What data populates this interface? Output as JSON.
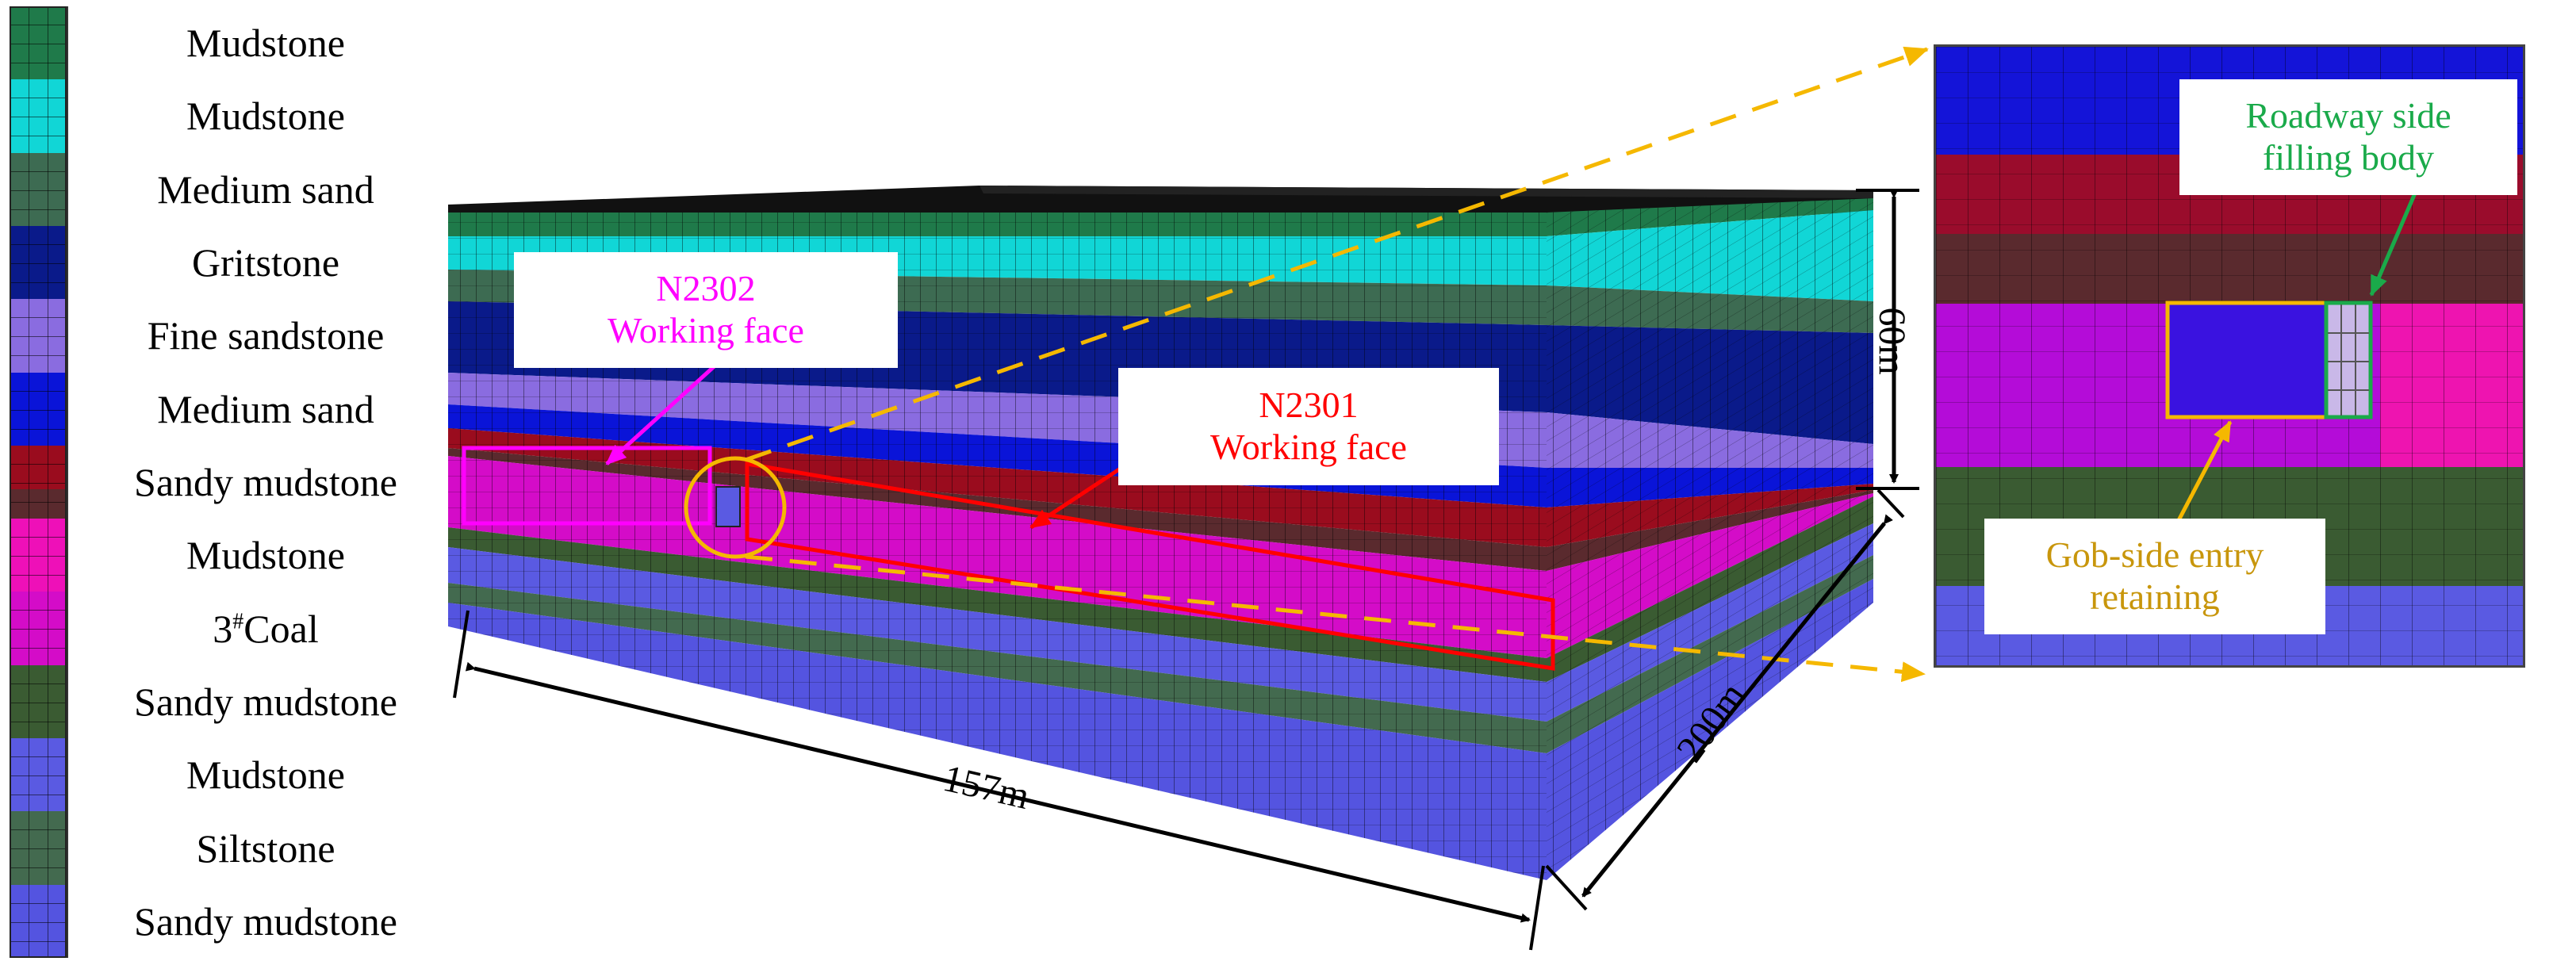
{
  "legend": {
    "layers": [
      {
        "label": "Mudstone",
        "color": "#1f7a4a"
      },
      {
        "label": "Mudstone",
        "color": "#11d6d6"
      },
      {
        "label": "Medium sand",
        "color": "#3d6b52"
      },
      {
        "label": "Gritstone",
        "color": "#0a1a8a"
      },
      {
        "label": "Fine sandstone",
        "color": "#8a6ce0"
      },
      {
        "label": "Medium sand",
        "color": "#0a14d8"
      },
      {
        "label": "Sandy mudstone",
        "color": "#9a0c1e",
        "color2": "#5a2a2e"
      },
      {
        "label": "Mudstone",
        "color": "#ee10b8"
      },
      {
        "label": "3#Coal",
        "color": "#d40cc8"
      },
      {
        "label": "Sandy mudstone",
        "color": "#3a5b32"
      },
      {
        "label": "Mudstone",
        "color": "#5a5ae2"
      },
      {
        "label": "Siltstone",
        "color": "#436a4f"
      },
      {
        "label": "Sandy mudstone",
        "color": "#5454e0"
      }
    ]
  },
  "model": {
    "dimensions": {
      "width": "157m",
      "length": "200m",
      "height": "60m"
    }
  },
  "callouts": {
    "n2302": {
      "line1": "N2302",
      "line2": "Working face",
      "color": "#ff00ff"
    },
    "n2301": {
      "line1": "N2301",
      "line2": "Working face",
      "color": "#ff0000"
    }
  },
  "inset": {
    "roadway": {
      "line1": "Roadway side",
      "line2": "filling body",
      "color": "#1aaa4a"
    },
    "gob": {
      "line1": "Gob-side entry",
      "line2": "retaining",
      "color": "#c8960c"
    },
    "layers": [
      {
        "color": "#1414d8"
      },
      {
        "color": "#9a0c2c"
      },
      {
        "color": "#5a2a2e"
      },
      {
        "color": "#b40cd8",
        "color2": "#ee14b0"
      },
      {
        "color": "#3a5b32"
      },
      {
        "color": "#5a5ae2"
      }
    ]
  },
  "colors": {
    "guide": "#f5b800",
    "arrow": "#000000"
  }
}
